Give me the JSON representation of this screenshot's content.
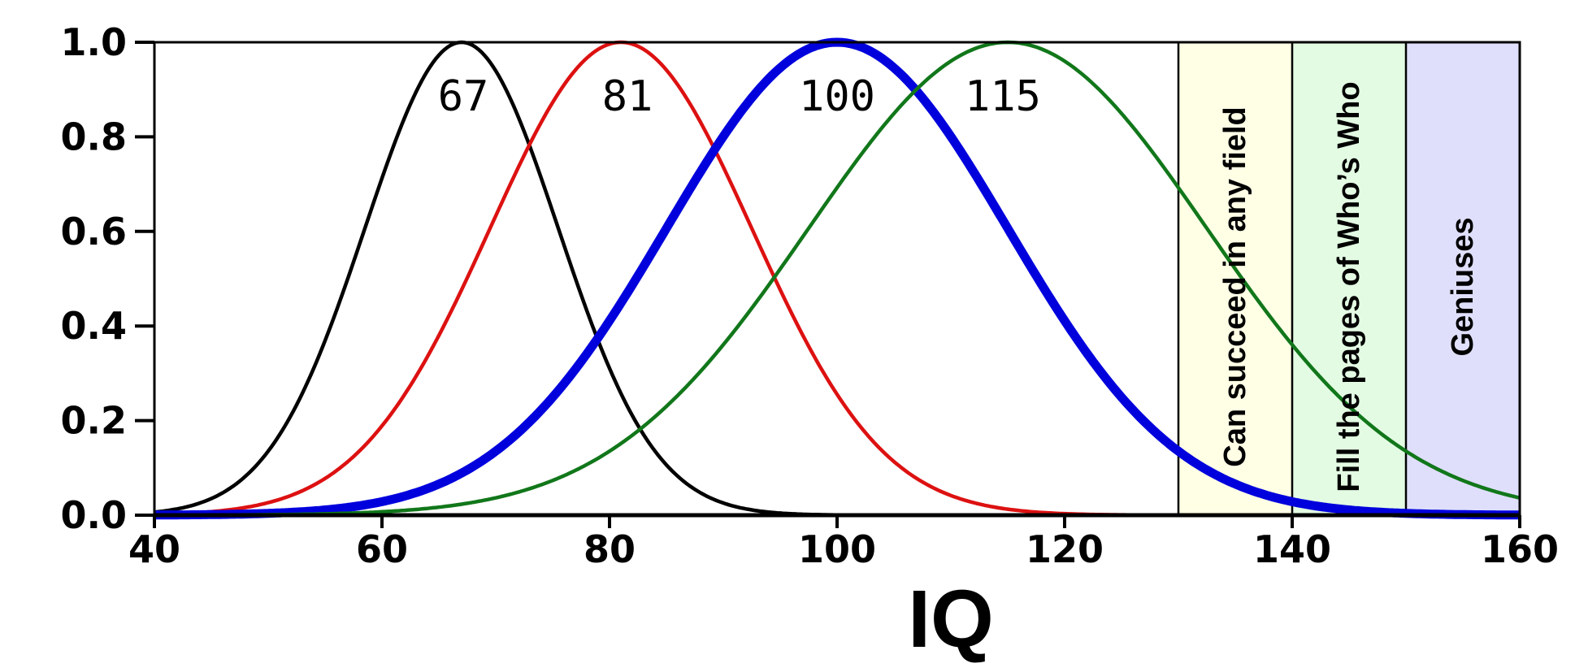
{
  "chart_data": {
    "type": "line",
    "title": "",
    "xlabel": "IQ",
    "ylabel": "",
    "xlim": [
      40,
      160
    ],
    "ylim": [
      0,
      1.0
    ],
    "x_ticks": [
      "40",
      "60",
      "80",
      "100",
      "120",
      "140",
      "160"
    ],
    "y_ticks": [
      "0.0",
      "0.2",
      "0.4",
      "0.6",
      "0.8",
      "1.0"
    ],
    "grid": false,
    "legend": "none",
    "series": [
      {
        "label": "67",
        "mean": 67,
        "sd": 8.5,
        "color": "#000000",
        "weight": "normal"
      },
      {
        "label": "81",
        "mean": 81,
        "sd": 11.5,
        "color": "#dd1111",
        "weight": "normal"
      },
      {
        "label": "100",
        "mean": 100,
        "sd": 15,
        "color": "#0000dd",
        "weight": "bold"
      },
      {
        "label": "115",
        "mean": 115,
        "sd": 17.5,
        "color": "#11771a",
        "weight": "normal"
      }
    ],
    "bands": [
      {
        "from": 130,
        "to": 140,
        "label": "Can succeed in any field",
        "color": "#ffffe6"
      },
      {
        "from": 140,
        "to": 150,
        "label": "Fill the pages of Who’s Who",
        "color": "#e3fbe3"
      },
      {
        "from": 150,
        "to": 160,
        "label": "Geniuses",
        "color": "#dfdffb"
      }
    ]
  }
}
